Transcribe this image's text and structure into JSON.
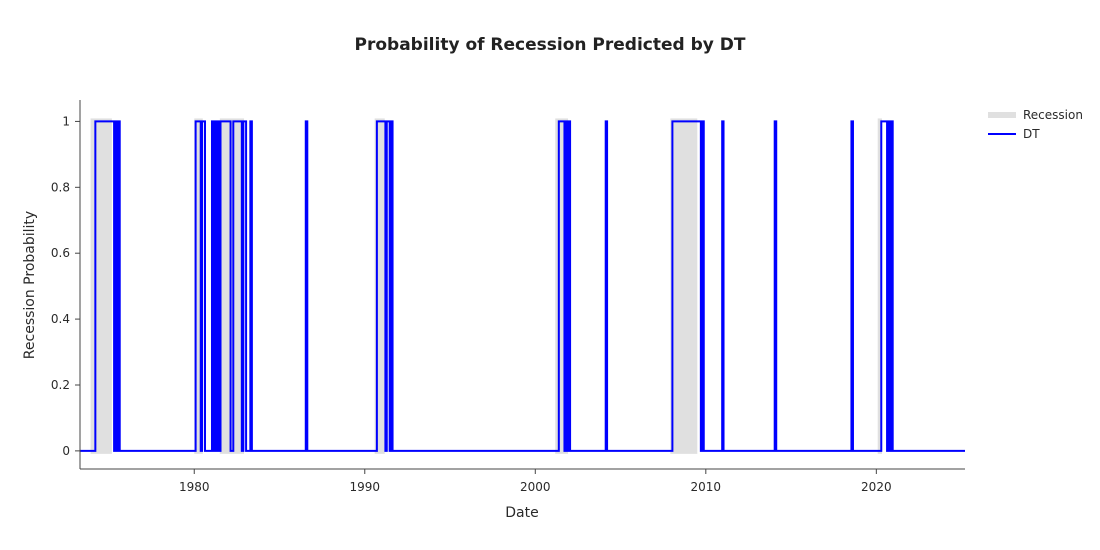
{
  "chart_data": {
    "type": "line",
    "title": "Probability of Recession Predicted by DT",
    "xlabel": "Date",
    "ylabel": "Recession Probability",
    "xlim": [
      1973.3,
      2025.2
    ],
    "ylim": [
      -0.055,
      1.065
    ],
    "x_ticks": [
      1980,
      1990,
      2000,
      2010,
      2020
    ],
    "y_ticks": [
      0,
      0.2,
      0.4,
      0.6,
      0.8,
      1
    ],
    "grid": false,
    "legend_position": "top-right",
    "recession_periods": [
      [
        1973.92,
        1975.17
      ],
      [
        1980.0,
        1980.5
      ],
      [
        1981.5,
        1982.92
      ],
      [
        1990.58,
        1991.17
      ],
      [
        2001.17,
        2001.92
      ],
      [
        2007.92,
        2009.5
      ],
      [
        2020.08,
        2020.33
      ]
    ],
    "series": [
      {
        "name": "Recession",
        "style": "band",
        "color": "#e0e0e0"
      },
      {
        "name": "DT",
        "style": "line",
        "color": "#0000ff",
        "x": [
          1973.3,
          1974.2,
          1974.2,
          1975.3,
          1975.3,
          1975.38,
          1975.38,
          1975.46,
          1975.46,
          1975.54,
          1975.54,
          1975.63,
          1975.63,
          1980.08,
          1980.08,
          1980.38,
          1980.38,
          1980.46,
          1980.46,
          1980.63,
          1980.63,
          1980.71,
          1980.71,
          1981.04,
          1981.04,
          1981.13,
          1981.13,
          1981.21,
          1981.21,
          1981.29,
          1981.29,
          1981.38,
          1981.38,
          1981.46,
          1981.46,
          1981.54,
          1981.54,
          1981.63,
          1981.63,
          1981.71,
          1981.71,
          1982.13,
          1982.13,
          1982.29,
          1982.29,
          1982.38,
          1982.38,
          1982.79,
          1982.79,
          1982.88,
          1982.88,
          1983.04,
          1983.04,
          1983.13,
          1983.13,
          1983.29,
          1983.29,
          1983.38,
          1983.38,
          1986.54,
          1986.54,
          1986.63,
          1986.63,
          1990.71,
          1990.71,
          1991.21,
          1991.21,
          1991.29,
          1991.29,
          1991.46,
          1991.46,
          1991.54,
          1991.54,
          1991.63,
          1991.63,
          1991.71,
          1991.71,
          2001.38,
          2001.38,
          2001.71,
          2001.71,
          2001.79,
          2001.79,
          2001.88,
          2001.88,
          2001.96,
          2001.96,
          2002.04,
          2002.04,
          2004.13,
          2004.13,
          2004.21,
          2004.21,
          2008.04,
          2008.04,
          2008.21,
          2008.21,
          2008.29,
          2008.29,
          2009.71,
          2009.71,
          2009.79,
          2009.79,
          2009.88,
          2009.88,
          2009.96,
          2009.96,
          2010.96,
          2010.96,
          2011.04,
          2011.04,
          2014.04,
          2014.04,
          2014.13,
          2014.13,
          2018.54,
          2018.54,
          2018.63,
          2018.63,
          2020.29,
          2020.29,
          2020.63,
          2020.63,
          2020.71,
          2020.71,
          2020.79,
          2020.79,
          2020.88,
          2020.88,
          2020.96,
          2020.96,
          2025.2
        ],
        "y": [
          0,
          0,
          1,
          1,
          0,
          0,
          1,
          1,
          0,
          0,
          1,
          1,
          0,
          0,
          1,
          1,
          0,
          0,
          1,
          1,
          0,
          0,
          0,
          0,
          1,
          1,
          0,
          0,
          1,
          1,
          0,
          0,
          1,
          1,
          0,
          0,
          1,
          1,
          1,
          1,
          1,
          1,
          0,
          0,
          1,
          1,
          1,
          1,
          0,
          0,
          1,
          1,
          0,
          0,
          0,
          0,
          1,
          1,
          0,
          0,
          1,
          1,
          0,
          0,
          1,
          1,
          0,
          0,
          1,
          1,
          0,
          0,
          1,
          1,
          0,
          0,
          0,
          0,
          1,
          1,
          0,
          0,
          1,
          1,
          0,
          0,
          1,
          1,
          0,
          0,
          1,
          1,
          0,
          0,
          1,
          1,
          1,
          1,
          1,
          1,
          0,
          0,
          1,
          1,
          0,
          0,
          0,
          0,
          1,
          1,
          0,
          0,
          1,
          1,
          0,
          0,
          1,
          1,
          0,
          0,
          1,
          1,
          0,
          0,
          1,
          1,
          0,
          0,
          1,
          1,
          0,
          0
        ]
      }
    ]
  }
}
